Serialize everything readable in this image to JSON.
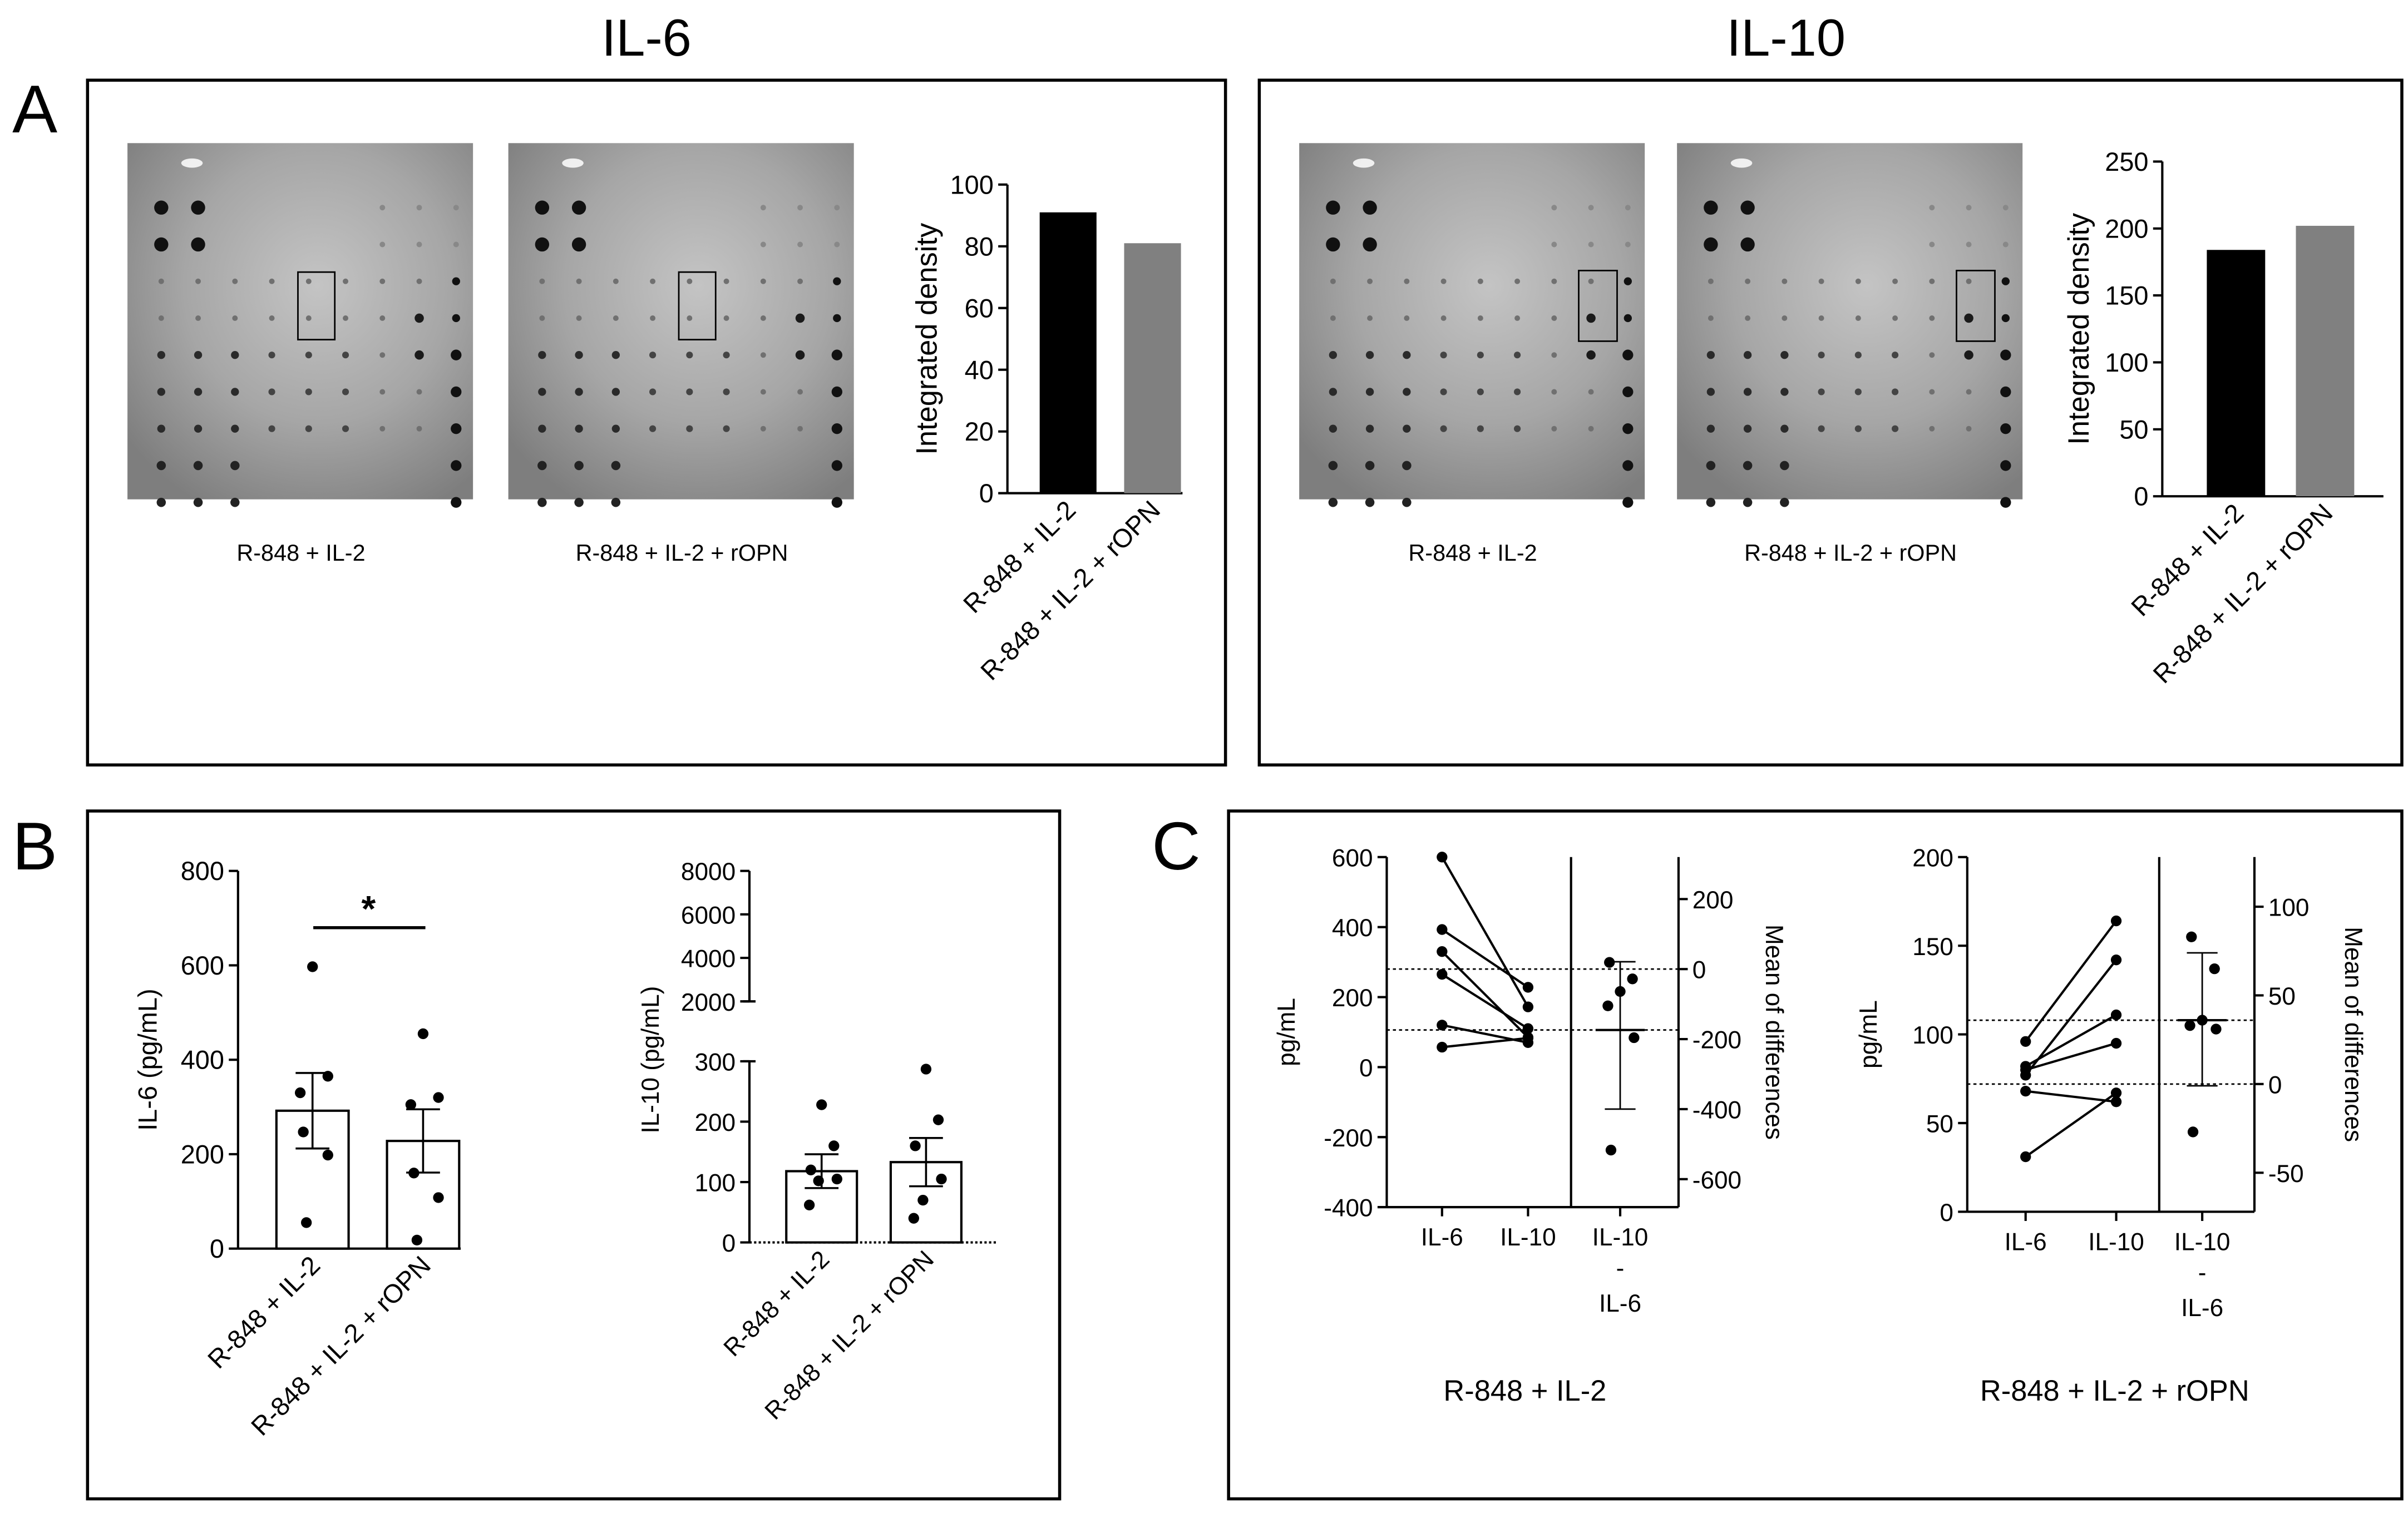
{
  "figure": {
    "panel_letters": {
      "A": "A",
      "B": "B",
      "C": "C"
    },
    "section_titles": {
      "il6": "IL-6",
      "il10": "IL-10"
    },
    "blot_captions": {
      "ctrl": "R-848 + IL-2",
      "ropn": "R-848 + IL-2 + rOPN"
    },
    "panelC_captions": {
      "left": "R-848 + IL-2",
      "right": "R-848 + IL-2 + rOPN"
    },
    "significance": "*",
    "category_labels": [
      "IL-6",
      "IL-10"
    ],
    "diff_label": {
      "line1": "IL-10",
      "line2": "-",
      "line3": "IL-6"
    }
  },
  "colors": {
    "black": "#000000",
    "gray": "#808080",
    "blot_bg": "#a4a4a4"
  },
  "chart_data": [
    {
      "id": "A_IL6_density",
      "type": "bar",
      "categories": [
        "R-848 + IL-2",
        "R-848 + IL-2 + rOPN"
      ],
      "values": [
        91,
        81
      ],
      "ylabel": "Integrated density",
      "ylim": [
        0,
        100
      ],
      "yticks": [
        0,
        20,
        40,
        60,
        80,
        100
      ],
      "bar_colors": [
        "#000000",
        "#808080"
      ]
    },
    {
      "id": "A_IL10_density",
      "type": "bar",
      "categories": [
        "R-848 + IL-2",
        "R-848 + IL-2 + rOPN"
      ],
      "values": [
        184,
        202
      ],
      "ylabel": "Integrated density",
      "ylim": [
        0,
        250
      ],
      "yticks": [
        0,
        50,
        100,
        150,
        200,
        250
      ],
      "bar_colors": [
        "#000000",
        "#808080"
      ]
    },
    {
      "id": "B_IL6",
      "type": "bar",
      "categories": [
        "R-848 + IL-2",
        "R-848 + IL-2 + rOPN"
      ],
      "values": [
        292,
        228
      ],
      "sem": [
        80,
        67
      ],
      "points": [
        [
          597,
          365,
          330,
          247,
          198,
          55
        ],
        [
          455,
          320,
          305,
          160,
          108,
          18
        ]
      ],
      "ylabel": "IL-6 (pg/mL)",
      "ylim": [
        0,
        800
      ],
      "yticks": [
        0,
        200,
        400,
        600,
        800
      ],
      "significance": "*"
    },
    {
      "id": "B_IL10",
      "type": "bar",
      "categories": [
        "R-848 + IL-2",
        "R-848 + IL-2 + rOPN"
      ],
      "values": [
        118,
        133
      ],
      "sem": [
        28,
        40
      ],
      "points": [
        [
          228,
          160,
          120,
          105,
          102,
          62
        ],
        [
          287,
          203,
          160,
          105,
          70,
          40
        ]
      ],
      "ylabel": "IL-10 (pg/mL)",
      "ylim": [
        0,
        8000
      ],
      "axis_break": {
        "lower": [
          0,
          300
        ],
        "upper": [
          2000,
          8000
        ]
      },
      "yticks_lower": [
        0,
        100,
        200,
        300
      ],
      "yticks_upper": [
        2000,
        4000,
        6000,
        8000
      ]
    },
    {
      "id": "C_left",
      "type": "scatter",
      "title": "R-848 + IL-2",
      "categories": [
        "IL-6",
        "IL-10"
      ],
      "pairs": [
        [
          600,
          172
        ],
        [
          393,
          228
        ],
        [
          330,
          85
        ],
        [
          265,
          110
        ],
        [
          120,
          70
        ],
        [
          57,
          83
        ]
      ],
      "ylabel": "pg/mL",
      "ylim": [
        -400,
        600
      ],
      "yticks": [
        -400,
        -200,
        0,
        200,
        400,
        600
      ],
      "diff_label": "IL-10 - IL-6",
      "diff_values": [
        19,
        -28,
        -64,
        -105,
        -196,
        -517
      ],
      "diff_mean": -174,
      "diff_ci": [
        -400,
        21
      ],
      "diff_axis_label": "Mean of differences",
      "diff_ylim": [
        -680,
        320
      ],
      "diff_yticks": [
        -600,
        -400,
        -200,
        0,
        200
      ]
    },
    {
      "id": "C_right",
      "type": "scatter",
      "title": "R-848 + IL-2 + rOPN",
      "categories": [
        "IL-6",
        "IL-10"
      ],
      "pairs": [
        [
          96,
          164
        ],
        [
          82,
          111
        ],
        [
          77,
          142
        ],
        [
          68,
          62
        ],
        [
          80,
          95
        ],
        [
          31,
          67
        ]
      ],
      "ylabel": "pg/mL",
      "ylim": [
        0,
        200
      ],
      "yticks": [
        0,
        50,
        100,
        150,
        200
      ],
      "diff_label": "IL-10 - IL-6",
      "diff_values": [
        83,
        65,
        36,
        33,
        31,
        -27
      ],
      "diff_mean": 36,
      "diff_ci": [
        -1,
        74
      ],
      "diff_axis_label": "Mean of differences",
      "diff_ylim": [
        -72,
        128
      ],
      "diff_yticks": [
        -50,
        0,
        50,
        100
      ]
    }
  ]
}
